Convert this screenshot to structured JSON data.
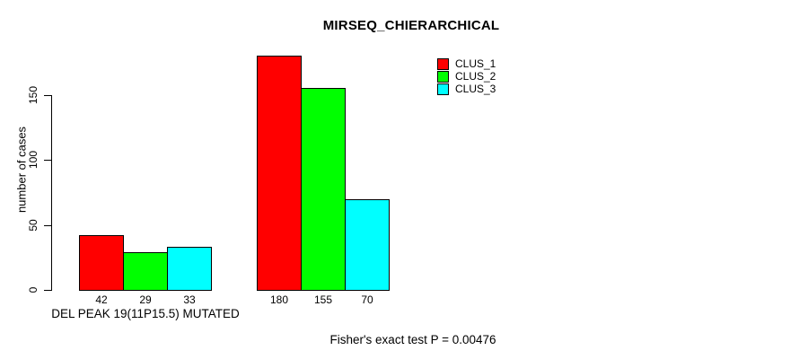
{
  "chart_data": {
    "type": "bar",
    "title": "MIRSEQ_CHIERARCHICAL",
    "ylabel": "number of cases",
    "xlabel": "",
    "ylim": [
      0,
      180
    ],
    "yticks": [
      0,
      50,
      100,
      150
    ],
    "grid": false,
    "legend_position": "top-right",
    "categories": [
      "DEL PEAK 19(11P15.5) MUTATED",
      ""
    ],
    "series": [
      {
        "name": "CLUS_1",
        "color": "#ff0000",
        "values": [
          42,
          180
        ]
      },
      {
        "name": "CLUS_2",
        "color": "#00ff00",
        "values": [
          29,
          155
        ]
      },
      {
        "name": "CLUS_3",
        "color": "#00ffff",
        "values": [
          33,
          70
        ]
      }
    ],
    "bar_value_labels": [
      [
        "42",
        "29",
        "33"
      ],
      [
        "180",
        "155",
        "70"
      ]
    ],
    "footnote": "Fisher's exact test P = 0.00476",
    "colors": {
      "background": "#ffffff",
      "axis": "#000000",
      "bar_border": "#000000"
    }
  }
}
